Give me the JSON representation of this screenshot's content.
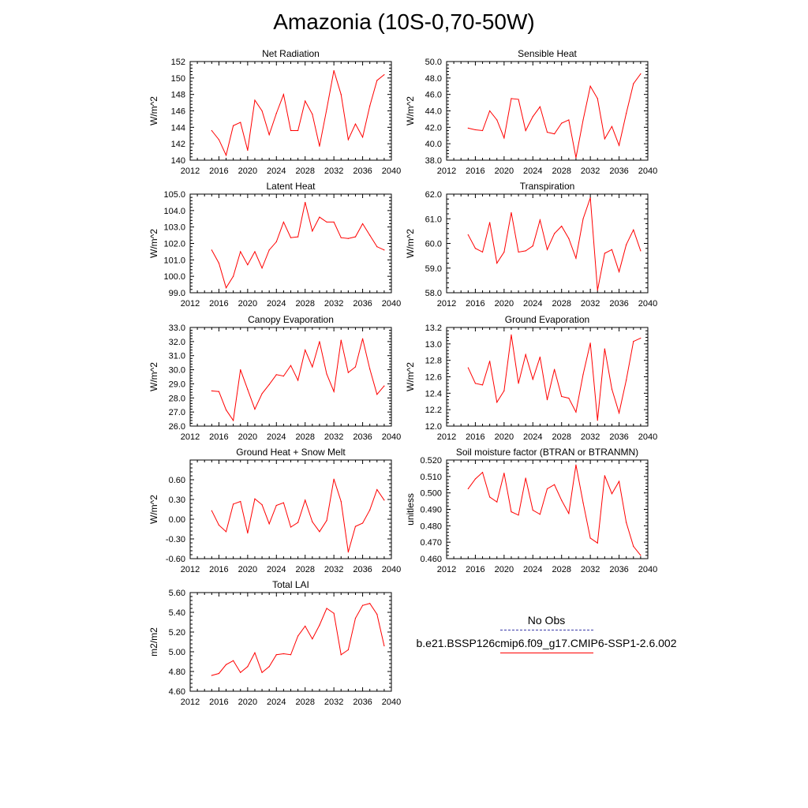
{
  "title": "Amazonia (10S-0,70-50W)",
  "line_color": "#ff0000",
  "obs_color": "#3a3aa8",
  "legend": {
    "obs_label": "No Obs",
    "run_label": "b.e21.BSSP126cmip6.f09_g17.CMIP6-SSP1-2.6.002"
  },
  "chart_data": [
    {
      "type": "line",
      "title": "Net Radiation",
      "ylabel": "W/m^2",
      "xlim": [
        2012,
        2040
      ],
      "ylim": [
        140,
        152
      ],
      "xticks": [
        2012,
        2016,
        2020,
        2024,
        2028,
        2032,
        2036,
        2040
      ],
      "yticks": [
        140,
        142,
        144,
        146,
        148,
        150,
        152
      ],
      "ytick_labels": [
        "140",
        "142",
        "144",
        "146",
        "148",
        "150",
        "152"
      ],
      "x": [
        2015,
        2016,
        2017,
        2018,
        2019,
        2020,
        2021,
        2022,
        2023,
        2024,
        2025,
        2026,
        2027,
        2028,
        2029,
        2030,
        2031,
        2032,
        2033,
        2034,
        2035,
        2036,
        2037,
        2038,
        2039
      ],
      "values": [
        143.6,
        142.5,
        140.6,
        144.2,
        144.6,
        141.2,
        147.3,
        146.0,
        143.1,
        145.7,
        148.0,
        143.6,
        143.6,
        147.2,
        145.6,
        141.7,
        146.2,
        150.9,
        148.0,
        142.5,
        144.4,
        142.8,
        146.6,
        149.7,
        150.4
      ]
    },
    {
      "type": "line",
      "title": "Sensible Heat",
      "ylabel": "W/m^2",
      "xlim": [
        2012,
        2040
      ],
      "ylim": [
        38,
        50
      ],
      "xticks": [
        2012,
        2016,
        2020,
        2024,
        2028,
        2032,
        2036,
        2040
      ],
      "yticks": [
        38,
        40,
        42,
        44,
        46,
        48,
        50
      ],
      "ytick_labels": [
        "38.0",
        "40.0",
        "42.0",
        "44.0",
        "46.0",
        "48.0",
        "50.0"
      ],
      "x": [
        2015,
        2016,
        2017,
        2018,
        2019,
        2020,
        2021,
        2022,
        2023,
        2024,
        2025,
        2026,
        2027,
        2028,
        2029,
        2030,
        2031,
        2032,
        2033,
        2034,
        2035,
        2036,
        2037,
        2038,
        2039
      ],
      "values": [
        41.9,
        41.7,
        41.6,
        44.0,
        42.9,
        40.7,
        45.5,
        45.4,
        41.6,
        43.3,
        44.5,
        41.4,
        41.2,
        42.5,
        42.9,
        38.3,
        42.9,
        47.0,
        45.5,
        40.6,
        42.1,
        39.8,
        43.7,
        47.3,
        48.5
      ]
    },
    {
      "type": "line",
      "title": "Latent Heat",
      "ylabel": "W/m^2",
      "xlim": [
        2012,
        2040
      ],
      "ylim": [
        99,
        105
      ],
      "xticks": [
        2012,
        2016,
        2020,
        2024,
        2028,
        2032,
        2036,
        2040
      ],
      "yticks": [
        99,
        100,
        101,
        102,
        103,
        104,
        105
      ],
      "ytick_labels": [
        "99.0",
        "100.0",
        "101.0",
        "102.0",
        "103.0",
        "104.0",
        "105.0"
      ],
      "x": [
        2015,
        2016,
        2017,
        2018,
        2019,
        2020,
        2021,
        2022,
        2023,
        2024,
        2025,
        2026,
        2027,
        2028,
        2029,
        2030,
        2031,
        2032,
        2033,
        2034,
        2035,
        2036,
        2037,
        2038,
        2039
      ],
      "values": [
        101.6,
        100.8,
        99.3,
        100.0,
        101.5,
        100.7,
        101.5,
        100.5,
        101.6,
        102.1,
        103.3,
        102.35,
        102.4,
        104.5,
        102.75,
        103.6,
        103.3,
        103.3,
        102.35,
        102.3,
        102.4,
        103.2,
        102.5,
        101.8,
        101.6
      ]
    },
    {
      "type": "line",
      "title": "Transpiration",
      "ylabel": "W/m^2",
      "xlim": [
        2012,
        2040
      ],
      "ylim": [
        58,
        62
      ],
      "xticks": [
        2012,
        2016,
        2020,
        2024,
        2028,
        2032,
        2036,
        2040
      ],
      "yticks": [
        58,
        59,
        60,
        61,
        62
      ],
      "ytick_labels": [
        "58.0",
        "59.0",
        "60.0",
        "61.0",
        "62.0"
      ],
      "x": [
        2015,
        2016,
        2017,
        2018,
        2019,
        2020,
        2021,
        2022,
        2023,
        2024,
        2025,
        2026,
        2027,
        2028,
        2029,
        2030,
        2031,
        2032,
        2033,
        2034,
        2035,
        2036,
        2037,
        2038,
        2039
      ],
      "values": [
        60.35,
        59.8,
        59.65,
        60.85,
        59.2,
        59.65,
        61.25,
        59.65,
        59.7,
        59.9,
        60.95,
        59.75,
        60.4,
        60.7,
        60.2,
        59.4,
        61.0,
        61.85,
        58.1,
        59.6,
        59.75,
        58.85,
        59.95,
        60.55,
        59.7
      ]
    },
    {
      "type": "line",
      "title": "Canopy Evaporation",
      "ylabel": "W/m^2",
      "xlim": [
        2012,
        2040
      ],
      "ylim": [
        26,
        33
      ],
      "xticks": [
        2012,
        2016,
        2020,
        2024,
        2028,
        2032,
        2036,
        2040
      ],
      "yticks": [
        26,
        27,
        28,
        29,
        30,
        31,
        32,
        33
      ],
      "ytick_labels": [
        "26.0",
        "27.0",
        "28.0",
        "29.0",
        "30.0",
        "31.0",
        "32.0",
        "33.0"
      ],
      "x": [
        2015,
        2016,
        2017,
        2018,
        2019,
        2020,
        2021,
        2022,
        2023,
        2024,
        2025,
        2026,
        2027,
        2028,
        2029,
        2030,
        2031,
        2032,
        2033,
        2034,
        2035,
        2036,
        2037,
        2038,
        2039
      ],
      "values": [
        28.5,
        28.45,
        27.15,
        26.4,
        30.0,
        28.6,
        27.2,
        28.3,
        28.95,
        29.65,
        29.55,
        30.3,
        29.25,
        31.4,
        30.2,
        32.0,
        29.7,
        28.45,
        32.1,
        29.8,
        30.2,
        32.2,
        30.05,
        28.25,
        28.85
      ]
    },
    {
      "type": "line",
      "title": "Ground Evaporation",
      "ylabel": "W/m^2",
      "xlim": [
        2012,
        2040
      ],
      "ylim": [
        12,
        13.2
      ],
      "xticks": [
        2012,
        2016,
        2020,
        2024,
        2028,
        2032,
        2036,
        2040
      ],
      "yticks": [
        12.0,
        12.2,
        12.4,
        12.6,
        12.8,
        13.0,
        13.2
      ],
      "ytick_labels": [
        "12.0",
        "12.2",
        "12.4",
        "12.6",
        "12.8",
        "13.0",
        "13.2"
      ],
      "x": [
        2015,
        2016,
        2017,
        2018,
        2019,
        2020,
        2021,
        2022,
        2023,
        2024,
        2025,
        2026,
        2027,
        2028,
        2029,
        2030,
        2031,
        2032,
        2033,
        2034,
        2035,
        2036,
        2037,
        2038,
        2039
      ],
      "values": [
        12.71,
        12.52,
        12.5,
        12.79,
        12.29,
        12.43,
        13.11,
        12.52,
        12.87,
        12.57,
        12.84,
        12.32,
        12.69,
        12.36,
        12.34,
        12.17,
        12.63,
        13.01,
        12.07,
        12.94,
        12.45,
        12.16,
        12.56,
        13.03,
        13.07
      ]
    },
    {
      "type": "line",
      "title": "Ground Heat + Snow Melt",
      "ylabel": "W/m^2",
      "xlim": [
        2012,
        2040
      ],
      "ylim": [
        -0.6,
        0.9
      ],
      "xticks": [
        2012,
        2016,
        2020,
        2024,
        2028,
        2032,
        2036,
        2040
      ],
      "yticks": [
        -0.6,
        -0.3,
        0.0,
        0.3,
        0.6
      ],
      "ytick_labels": [
        "-0.60",
        "-0.30",
        "0.00",
        "0.30",
        "0.60"
      ],
      "x": [
        2015,
        2016,
        2017,
        2018,
        2019,
        2020,
        2021,
        2022,
        2023,
        2024,
        2025,
        2026,
        2027,
        2028,
        2029,
        2030,
        2031,
        2032,
        2033,
        2034,
        2035,
        2036,
        2037,
        2038,
        2039
      ],
      "values": [
        0.13,
        -0.09,
        -0.19,
        0.23,
        0.27,
        -0.21,
        0.31,
        0.22,
        -0.07,
        0.21,
        0.25,
        -0.12,
        -0.05,
        0.29,
        -0.04,
        -0.19,
        -0.02,
        0.61,
        0.27,
        -0.5,
        -0.11,
        -0.06,
        0.14,
        0.45,
        0.29
      ]
    },
    {
      "type": "line",
      "title": "Soil moisture factor (BTRAN or BTRANMN)",
      "ylabel": "unitless",
      "xlim": [
        2012,
        2040
      ],
      "ylim": [
        0.46,
        0.52
      ],
      "xticks": [
        2012,
        2016,
        2020,
        2024,
        2028,
        2032,
        2036,
        2040
      ],
      "yticks": [
        0.46,
        0.47,
        0.48,
        0.49,
        0.5,
        0.51,
        0.52
      ],
      "ytick_labels": [
        "0.460",
        "0.470",
        "0.480",
        "0.490",
        "0.500",
        "0.510",
        "0.520"
      ],
      "x": [
        2015,
        2016,
        2017,
        2018,
        2019,
        2020,
        2021,
        2022,
        2023,
        2024,
        2025,
        2026,
        2027,
        2028,
        2029,
        2030,
        2031,
        2032,
        2033,
        2034,
        2035,
        2036,
        2037,
        2038,
        2039
      ],
      "values": [
        0.5025,
        0.5085,
        0.5125,
        0.4975,
        0.4945,
        0.512,
        0.4885,
        0.4865,
        0.509,
        0.4895,
        0.487,
        0.5025,
        0.505,
        0.4955,
        0.4875,
        0.517,
        0.494,
        0.4725,
        0.4695,
        0.5105,
        0.4995,
        0.507,
        0.482,
        0.4675,
        0.462
      ]
    },
    {
      "type": "line",
      "title": "Total LAI",
      "ylabel": "m2/m2",
      "xlim": [
        2012,
        2040
      ],
      "ylim": [
        4.6,
        5.6
      ],
      "xticks": [
        2012,
        2016,
        2020,
        2024,
        2028,
        2032,
        2036,
        2040
      ],
      "yticks": [
        4.6,
        4.8,
        5.0,
        5.2,
        5.4,
        5.6
      ],
      "ytick_labels": [
        "4.60",
        "4.80",
        "5.00",
        "5.20",
        "5.40",
        "5.60"
      ],
      "x": [
        2015,
        2016,
        2017,
        2018,
        2019,
        2020,
        2021,
        2022,
        2023,
        2024,
        2025,
        2026,
        2027,
        2028,
        2029,
        2030,
        2031,
        2032,
        2033,
        2034,
        2035,
        2036,
        2037,
        2038,
        2039
      ],
      "values": [
        4.76,
        4.78,
        4.87,
        4.91,
        4.79,
        4.85,
        4.99,
        4.79,
        4.85,
        4.97,
        4.98,
        4.97,
        5.16,
        5.26,
        5.13,
        5.27,
        5.44,
        5.39,
        4.97,
        5.02,
        5.34,
        5.47,
        5.49,
        5.38,
        5.06
      ]
    }
  ]
}
